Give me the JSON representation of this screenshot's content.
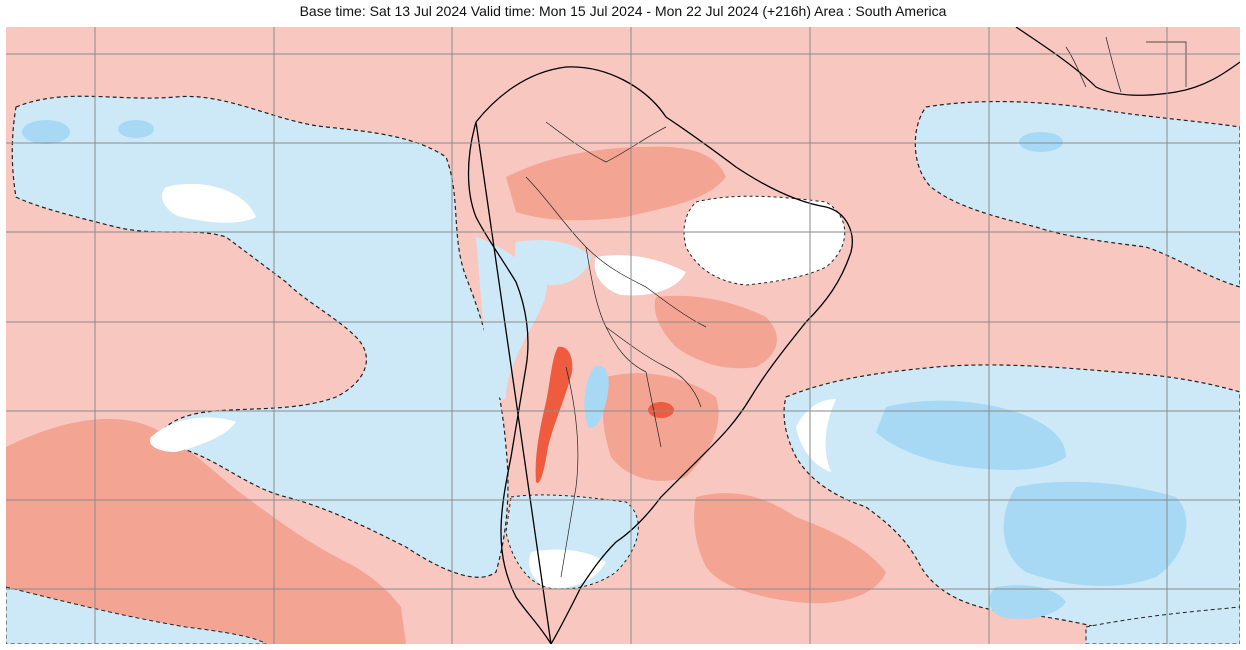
{
  "header": {
    "title": "Base time: Sat 13 Jul 2024 Valid time: Mon 15 Jul 2024 - Mon 22 Jul 2024 (+216h) Area : South America"
  },
  "colors": {
    "warm_light": "#f8c8c0",
    "warm_medium": "#f4a493",
    "warm_strong": "#ee5b3f",
    "neutral": "#ffffff",
    "cool_light": "#cde9f8",
    "cool_medium": "#a8d9f4",
    "coastline": "#000000",
    "contour_dashed": "#222222",
    "grid": "#8a8a8a"
  },
  "map": {
    "area": "South America",
    "grid_lines": true
  }
}
